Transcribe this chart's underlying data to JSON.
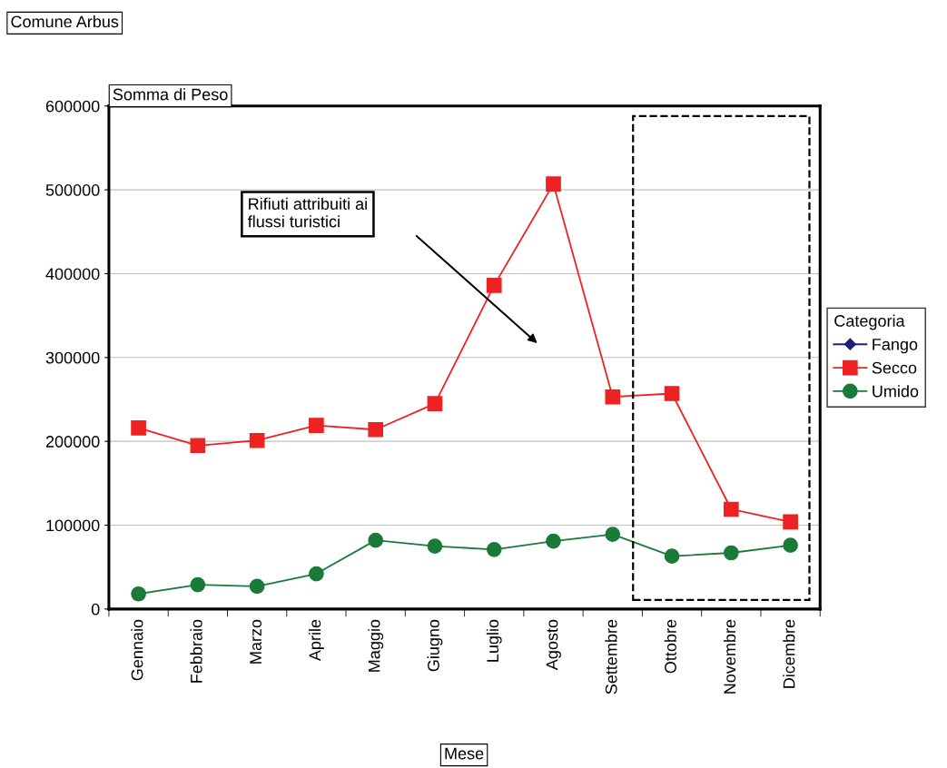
{
  "chart_data": {
    "type": "line",
    "title": "Comune Arbus",
    "ylabel": "Somma di Peso",
    "xlabel": "Mese",
    "legend_title": "Categoria",
    "categories": [
      "Gennaio",
      "Febbraio",
      "Marzo",
      "Aprile",
      "Maggio",
      "Giugno",
      "Luglio",
      "Agosto",
      "Settembre",
      "Ottobre",
      "Novembre",
      "Dicembre"
    ],
    "series": [
      {
        "name": "Fango",
        "color": "#1f1f7a",
        "marker": "diamond",
        "values": [
          null,
          null,
          null,
          null,
          null,
          null,
          null,
          null,
          null,
          null,
          null,
          null
        ]
      },
      {
        "name": "Secco",
        "color": "#ee2222",
        "marker": "square",
        "values": [
          216000,
          195000,
          201000,
          219000,
          214000,
          245000,
          386000,
          507000,
          253000,
          257000,
          119000,
          104000
        ]
      },
      {
        "name": "Umido",
        "color": "#1a7a3a",
        "marker": "circle",
        "values": [
          18000,
          29000,
          27000,
          42000,
          82000,
          75000,
          71000,
          81000,
          89000,
          63000,
          67000,
          76000
        ]
      }
    ],
    "ylim": [
      0,
      600000
    ],
    "yticks": [
      0,
      100000,
      200000,
      300000,
      400000,
      500000,
      600000
    ],
    "grid": "y",
    "legend": "right",
    "line_style": "solid",
    "annotations": [
      "Rifiuti attribuiti ai flussi turistici"
    ]
  }
}
